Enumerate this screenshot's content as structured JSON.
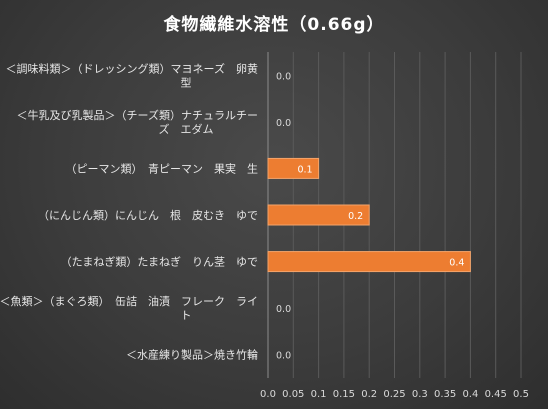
{
  "chart_data": {
    "type": "bar",
    "orientation": "horizontal",
    "title": "食物繊維水溶性（0.66g）",
    "categories": [
      [
        "＜調味料類＞（ドレッシング類）マヨネーズ　卵黄",
        "型"
      ],
      [
        "＜牛乳及び乳製品＞（チーズ類）ナチュラルチー",
        "ズ　エダム"
      ],
      [
        "（ピーマン類）　青ピーマン　果実　生"
      ],
      [
        "（にんじん類）にんじん　根　皮むき　ゆで"
      ],
      [
        "（たまねぎ類）たまねぎ　りん茎　ゆで"
      ],
      [
        "＜魚類＞（まぐろ類）　缶詰　油漬　フレーク　ライ",
        "ト"
      ],
      [
        "＜水産練り製品＞焼き竹輪"
      ]
    ],
    "values": [
      0.0,
      0.0,
      0.1,
      0.2,
      0.4,
      0.0,
      0.0
    ],
    "data_labels": [
      "0.0",
      "0.0",
      "0.1",
      "0.2",
      "0.4",
      "0.0",
      "0.0"
    ],
    "xlim": [
      0,
      0.5
    ],
    "xticks": [
      "0.0",
      "0.05",
      "0.1",
      "0.15",
      "0.2",
      "0.25",
      "0.3",
      "0.35",
      "0.4",
      "0.45",
      "0.5"
    ],
    "xlabel": "",
    "ylabel": "",
    "grid": true,
    "colors": {
      "bar_fill": "#ed7d31",
      "bar_edge": "#f4a46a",
      "label_on_bar": "#ffffff",
      "label_off_bar": "#d9d9d9"
    }
  }
}
